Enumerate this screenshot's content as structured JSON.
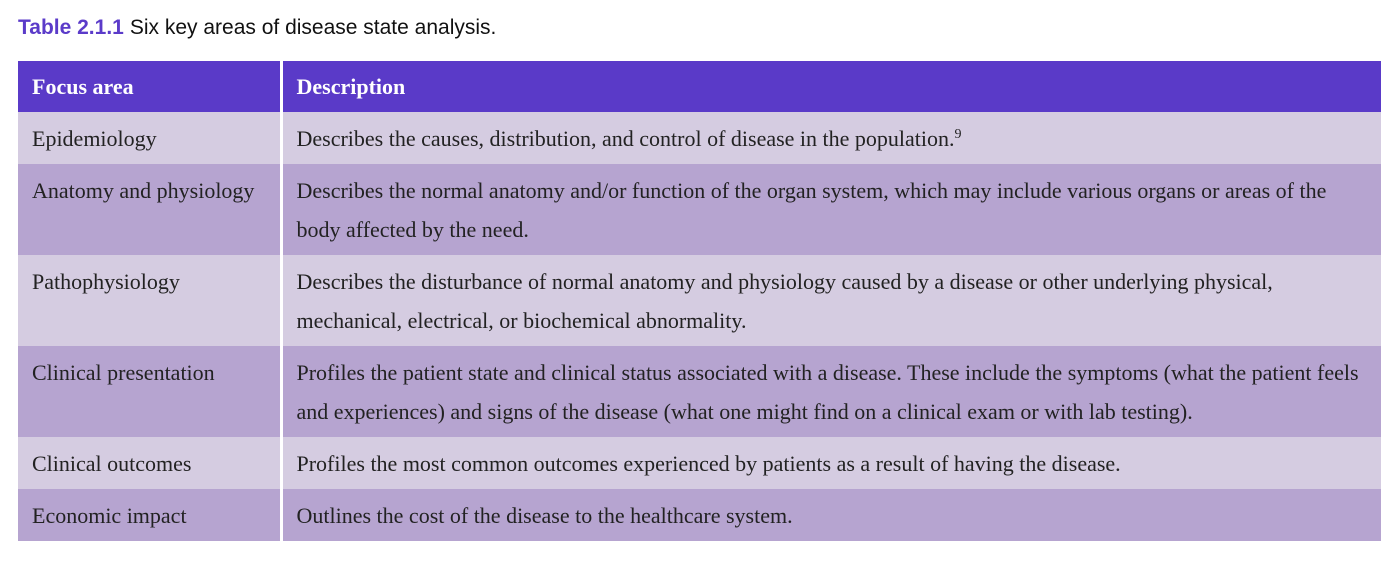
{
  "caption": {
    "label": "Table 2.1.1",
    "text": "Six key areas of disease state analysis."
  },
  "table": {
    "headers": [
      "Focus area",
      "Description"
    ],
    "rows": [
      {
        "focus": "Epidemiology",
        "description": "Describes the causes, distribution, and control of disease in the population.",
        "footnote": "9"
      },
      {
        "focus": "Anatomy and physiology",
        "description": "Describes the normal anatomy and/or function of the organ system, which may include various organs or areas of the body affected by the need."
      },
      {
        "focus": "Pathophysiology",
        "description": "Describes the disturbance of normal anatomy and physiology caused by a disease or other underlying physical, mechanical, electrical, or biochemical abnormality."
      },
      {
        "focus": "Clinical presentation",
        "description": "Profiles the patient state and clinical status associated with a disease. These include the symptoms (what the patient feels and experiences) and signs of the disease (what one might find on a clinical exam or with lab testing)."
      },
      {
        "focus": "Clinical outcomes",
        "description": "Profiles the most common outcomes experienced by patients as a result of having the disease."
      },
      {
        "focus": "Economic impact",
        "description": "Outlines the cost of the disease to the healthcare system."
      }
    ]
  },
  "colors": {
    "header_bg": "#5a3ac8",
    "row_light": "#d5cce1",
    "row_dark": "#b6a4d0",
    "caption_label": "#5b3bc9"
  }
}
